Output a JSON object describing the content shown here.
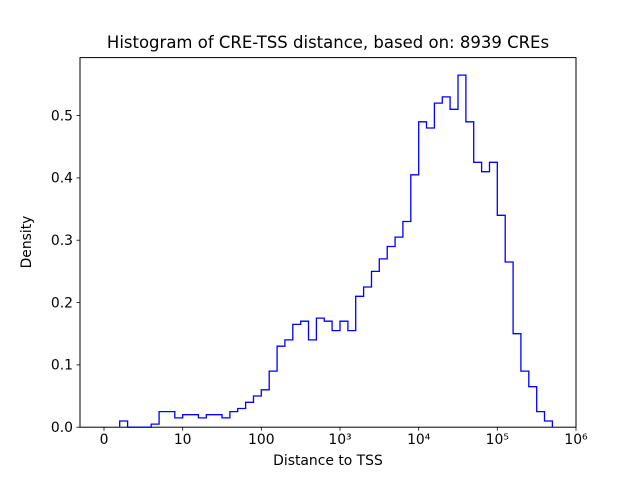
{
  "chart_data": {
    "type": "bar",
    "subtype": "histogram-step-outline",
    "title": "Histogram of CRE-TSS distance, based on: 8939 CREs",
    "xlabel": "Distance to TSS",
    "ylabel": "Density",
    "x_scale": "log10(distance+1), tick positions in log10 units",
    "xlim": [
      -0.305,
      6.0
    ],
    "ylim": [
      0,
      0.593
    ],
    "x_ticks": [
      {
        "pos": 0,
        "label": "0"
      },
      {
        "pos": 1,
        "label": "10"
      },
      {
        "pos": 2,
        "label": "100"
      },
      {
        "pos": 3,
        "label": "10³"
      },
      {
        "pos": 4,
        "label": "10⁴"
      },
      {
        "pos": 5,
        "label": "10⁵"
      },
      {
        "pos": 6,
        "label": "10⁶"
      }
    ],
    "y_ticks": [
      {
        "pos": 0.0,
        "label": "0.0"
      },
      {
        "pos": 0.1,
        "label": "0.1"
      },
      {
        "pos": 0.2,
        "label": "0.2"
      },
      {
        "pos": 0.3,
        "label": "0.3"
      },
      {
        "pos": 0.4,
        "label": "0.4"
      },
      {
        "pos": 0.5,
        "label": "0.5"
      }
    ],
    "bin_start": 0.2,
    "bin_width": 0.1,
    "densities": [
      0.01,
      0,
      0,
      0,
      0.005,
      0.025,
      0.025,
      0.015,
      0.02,
      0.02,
      0.015,
      0.02,
      0.02,
      0.015,
      0.025,
      0.03,
      0.04,
      0.05,
      0.06,
      0.09,
      0.13,
      0.14,
      0.165,
      0.17,
      0.14,
      0.175,
      0.17,
      0.155,
      0.17,
      0.155,
      0.21,
      0.225,
      0.25,
      0.27,
      0.29,
      0.305,
      0.33,
      0.405,
      0.49,
      0.48,
      0.52,
      0.53,
      0.51,
      0.565,
      0.49,
      0.425,
      0.41,
      0.425,
      0.34,
      0.265,
      0.15,
      0.09,
      0.065,
      0.025,
      0.01
    ],
    "line_color": "#0000ff",
    "axis_color": "#000000",
    "background_color": "#ffffff",
    "grid": "off",
    "legend": "none"
  }
}
